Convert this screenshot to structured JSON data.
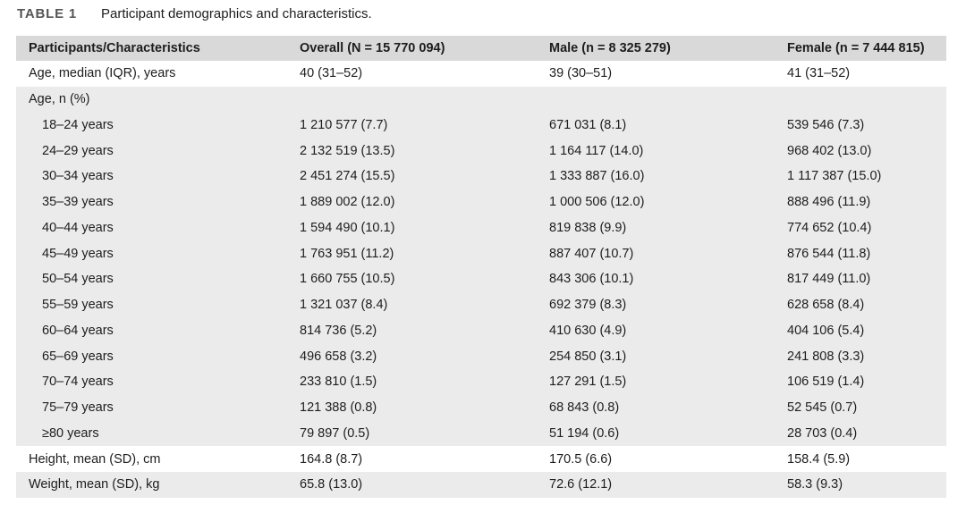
{
  "colors": {
    "header_bg": "#d9d9d9",
    "band_bg": "#ebebeb",
    "label_color": "#555555",
    "text_color": "#1d1d1d"
  },
  "table": {
    "label": "TABLE 1",
    "caption": "Participant demographics and characteristics.",
    "columns": [
      "Participants/Characteristics",
      "Overall (N = 15 770 094)",
      "Male (n = 8 325 279)",
      "Female (n = 7 444 815)"
    ],
    "rows": [
      {
        "label": "Age, median (IQR), years",
        "indent": false,
        "shaded": false,
        "values": [
          "40 (31–52)",
          "39 (30–51)",
          "41 (31–52)"
        ]
      },
      {
        "label": "Age, n (%)",
        "indent": false,
        "shaded": true,
        "values": [
          "",
          "",
          ""
        ]
      },
      {
        "label": "18–24 years",
        "indent": true,
        "shaded": true,
        "values": [
          "1 210 577 (7.7)",
          "671 031 (8.1)",
          "539 546 (7.3)"
        ]
      },
      {
        "label": "24–29 years",
        "indent": true,
        "shaded": true,
        "values": [
          "2 132 519 (13.5)",
          "1 164 117 (14.0)",
          "968 402 (13.0)"
        ]
      },
      {
        "label": "30–34 years",
        "indent": true,
        "shaded": true,
        "values": [
          "2 451 274 (15.5)",
          "1 333 887 (16.0)",
          "1 117 387 (15.0)"
        ]
      },
      {
        "label": "35–39 years",
        "indent": true,
        "shaded": true,
        "values": [
          "1 889 002 (12.0)",
          "1 000 506 (12.0)",
          "888 496 (11.9)"
        ]
      },
      {
        "label": "40–44 years",
        "indent": true,
        "shaded": true,
        "values": [
          "1 594 490 (10.1)",
          "819 838 (9.9)",
          "774 652 (10.4)"
        ]
      },
      {
        "label": "45–49 years",
        "indent": true,
        "shaded": true,
        "values": [
          "1 763 951 (11.2)",
          "887 407 (10.7)",
          "876 544 (11.8)"
        ]
      },
      {
        "label": "50–54 years",
        "indent": true,
        "shaded": true,
        "values": [
          "1 660 755 (10.5)",
          "843 306 (10.1)",
          "817 449 (11.0)"
        ]
      },
      {
        "label": "55–59 years",
        "indent": true,
        "shaded": true,
        "values": [
          "1 321 037 (8.4)",
          "692 379 (8.3)",
          "628 658 (8.4)"
        ]
      },
      {
        "label": "60–64 years",
        "indent": true,
        "shaded": true,
        "values": [
          "814 736 (5.2)",
          "410 630 (4.9)",
          "404 106 (5.4)"
        ]
      },
      {
        "label": "65–69 years",
        "indent": true,
        "shaded": true,
        "values": [
          "496 658 (3.2)",
          "254 850 (3.1)",
          "241 808 (3.3)"
        ]
      },
      {
        "label": "70–74 years",
        "indent": true,
        "shaded": true,
        "values": [
          "233 810 (1.5)",
          "127 291 (1.5)",
          "106 519 (1.4)"
        ]
      },
      {
        "label": "75–79 years",
        "indent": true,
        "shaded": true,
        "values": [
          "121 388 (0.8)",
          "68 843 (0.8)",
          "52 545 (0.7)"
        ]
      },
      {
        "label": "≥80 years",
        "indent": true,
        "shaded": true,
        "values": [
          "79 897 (0.5)",
          "51 194 (0.6)",
          "28 703 (0.4)"
        ]
      },
      {
        "label": "Height, mean (SD), cm",
        "indent": false,
        "shaded": false,
        "values": [
          "164.8 (8.7)",
          "170.5 (6.6)",
          "158.4 (5.9)"
        ]
      },
      {
        "label": "Weight, mean (SD), kg",
        "indent": false,
        "shaded": true,
        "values": [
          "65.8 (13.0)",
          "72.6 (12.1)",
          "58.3 (9.3)"
        ]
      }
    ]
  }
}
